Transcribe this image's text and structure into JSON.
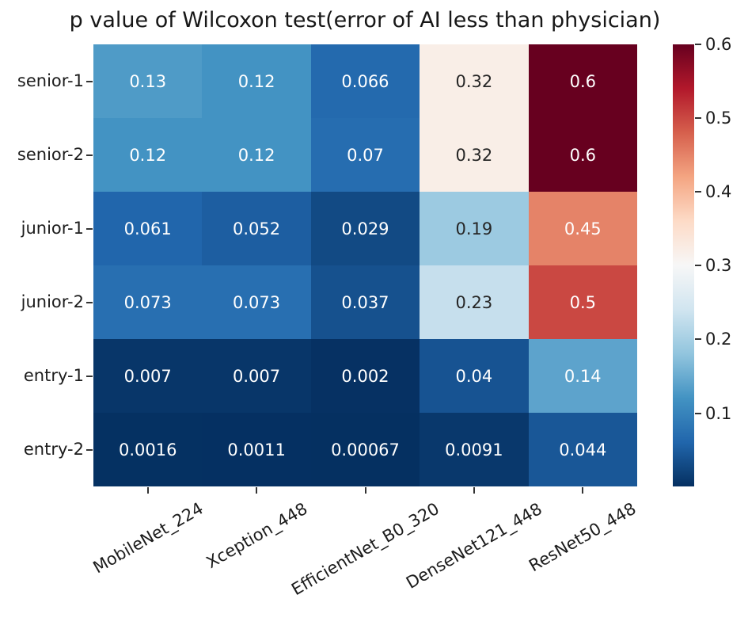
{
  "chart_data": {
    "type": "heatmap",
    "title": "p value of Wilcoxon test(error of AI less than physician)",
    "rows": [
      "senior-1",
      "senior-2",
      "junior-1",
      "junior-2",
      "entry-1",
      "entry-2"
    ],
    "columns": [
      "MobileNet_224",
      "Xception_448",
      "EfficientNet_B0_320",
      "DenseNet121_448",
      "ResNet50_448"
    ],
    "values": [
      [
        0.13,
        0.12,
        0.066,
        0.32,
        0.6
      ],
      [
        0.12,
        0.12,
        0.07,
        0.32,
        0.6
      ],
      [
        0.061,
        0.052,
        0.029,
        0.19,
        0.45
      ],
      [
        0.073,
        0.073,
        0.037,
        0.23,
        0.5
      ],
      [
        0.007,
        0.007,
        0.002,
        0.04,
        0.14
      ],
      [
        0.0016,
        0.0011,
        0.00067,
        0.0091,
        0.044
      ]
    ],
    "cell_labels": [
      [
        "0.13",
        "0.12",
        "0.066",
        "0.32",
        "0.6"
      ],
      [
        "0.12",
        "0.12",
        "0.07",
        "0.32",
        "0.6"
      ],
      [
        "0.061",
        "0.052",
        "0.029",
        "0.19",
        "0.45"
      ],
      [
        "0.073",
        "0.073",
        "0.037",
        "0.23",
        "0.5"
      ],
      [
        "0.007",
        "0.007",
        "0.002",
        "0.04",
        "0.14"
      ],
      [
        "0.0016",
        "0.0011",
        "0.00067",
        "0.0091",
        "0.044"
      ]
    ],
    "colormap": "RdBu_r",
    "vmin": 0.00067,
    "vmax": 0.6,
    "colorbar_ticks": [
      0.6,
      0.5,
      0.4,
      0.3,
      0.2,
      0.1
    ],
    "colormap_stops": [
      "#053061",
      "#2166ac",
      "#4393c3",
      "#92c5de",
      "#d1e5f0",
      "#f7f7f7",
      "#fddbc7",
      "#f4a582",
      "#d6604d",
      "#b2182b",
      "#67001f"
    ],
    "annotation_colors": {
      "on_light": "#262626",
      "on_dark": "#ffffff"
    },
    "legend_position": "right",
    "grid": "off"
  }
}
